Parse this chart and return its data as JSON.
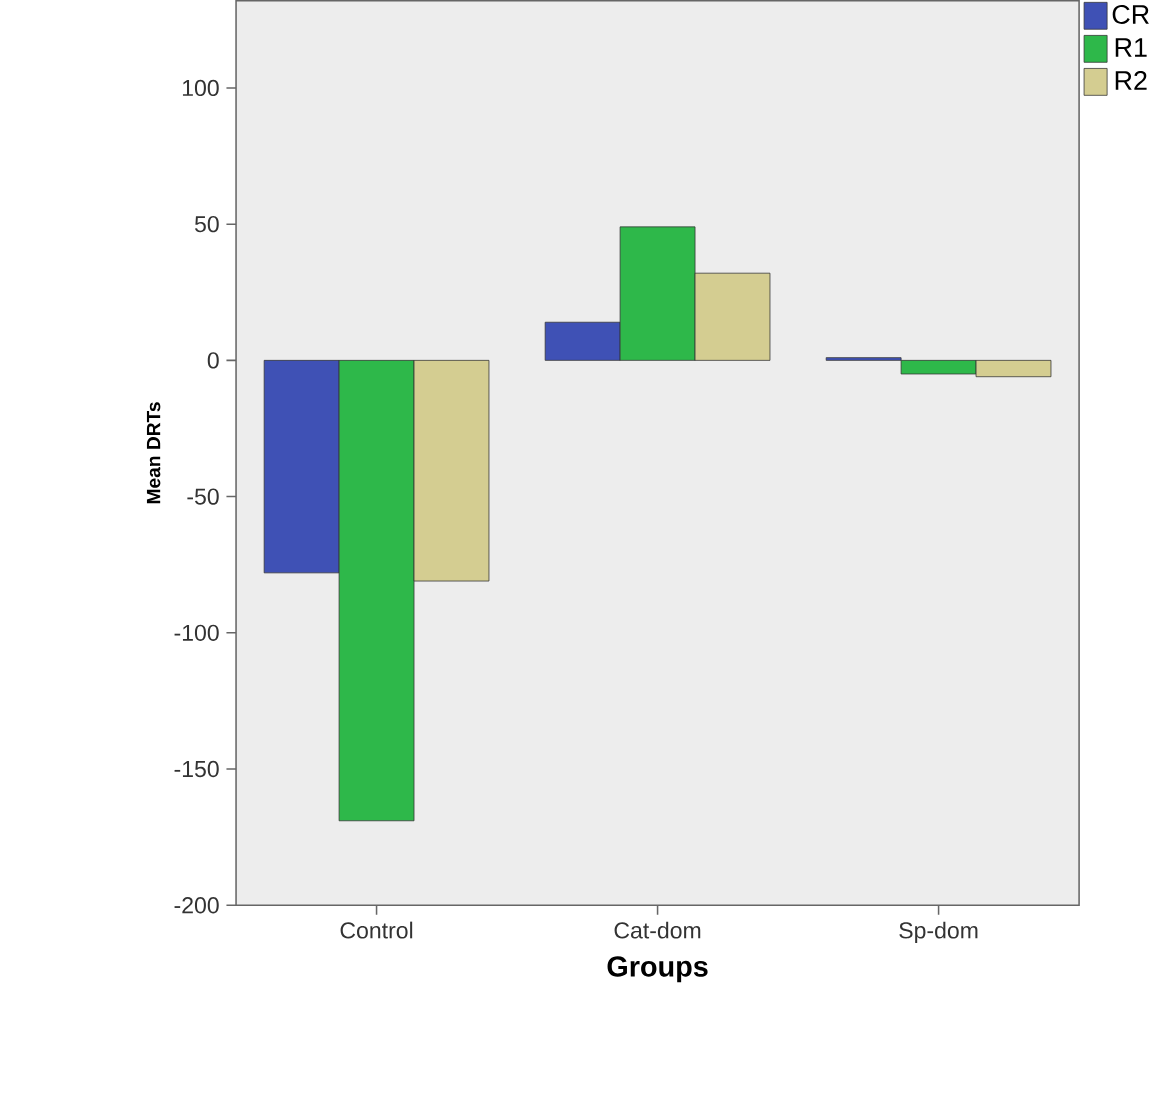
{
  "chart_data": {
    "type": "bar",
    "xlabel": "Groups",
    "ylabel": "Mean DRTs",
    "categories": [
      "Control",
      "Cat-dom",
      "Sp-dom"
    ],
    "series": [
      {
        "name": "CR",
        "color": "#3f51b5",
        "values": [
          -78,
          14,
          1
        ]
      },
      {
        "name": "R1",
        "color": "#2eb84a",
        "values": [
          -169,
          49,
          -5
        ]
      },
      {
        "name": "R2",
        "color": "#d4cd91",
        "values": [
          -81,
          32,
          -6
        ]
      }
    ],
    "ylim": [
      -200,
      132
    ],
    "yticks": [
      -200,
      -150,
      -100,
      -50,
      0,
      50,
      100
    ],
    "grid": false,
    "legend": "top right"
  }
}
